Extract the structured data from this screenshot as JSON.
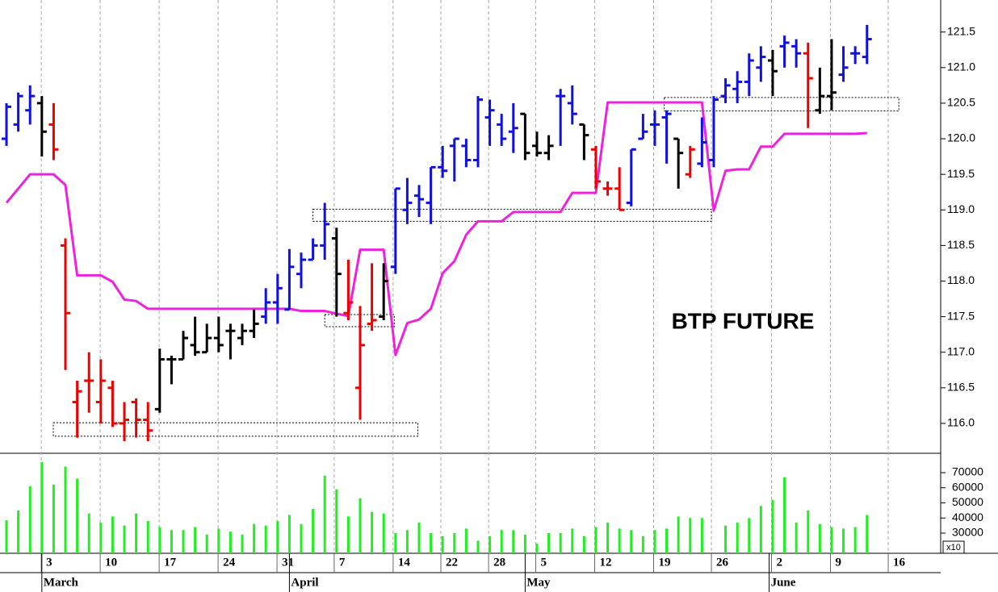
{
  "chart_data": [
    {
      "type": "ohlc",
      "annotation": "BTP FUTURE",
      "xlim": [
        -0.55,
        79.25
      ],
      "ylim": [
        115.58,
        121.95
      ],
      "yticks": [
        {
          "value": 116,
          "label": "116.0"
        },
        116.5,
        {
          "value": 117,
          "label": "117.0"
        },
        117.5,
        {
          "value": 118,
          "label": "118.0"
        },
        118.5,
        {
          "value": 119,
          "label": "119.0"
        },
        119.5,
        {
          "value": 120,
          "label": "120.0"
        },
        120.5,
        {
          "value": 121,
          "label": "121.0"
        },
        121.5
      ],
      "open": [
        120.0,
        120.2,
        120.4,
        120.5,
        120.2,
        118.5,
        116.3,
        116.6,
        116.3,
        116.5,
        116.0,
        116.3,
        116.05,
        116.2,
        116.9,
        116.9,
        117.1,
        117.0,
        117.2,
        117.3,
        117.2,
        117.3,
        117.5,
        117.7,
        117.6,
        118.1,
        118.3,
        118.5,
        118.6,
        117.55,
        116.5,
        117.4,
        117.5,
        118.2,
        119.0,
        119.2,
        119.1,
        119.6,
        119.9,
        119.9,
        119.7,
        120.3,
        120.2,
        120.1,
        120.35,
        119.9,
        119.8,
        120.6,
        120.5,
        120.2,
        119.85,
        119.3,
        119.3,
        119.1,
        120.0,
        120.2,
        120.3,
        120.0,
        119.5,
        119.65,
        119.7,
        120.6,
        120.7,
        120.8,
        121.0,
        121.1,
        121.3,
        121.3,
        121.2,
        120.4,
        120.6,
        120.9,
        121.2,
        121.15
      ],
      "high": [
        120.5,
        120.65,
        120.75,
        120.6,
        120.5,
        118.6,
        116.6,
        117.0,
        116.9,
        116.6,
        116.3,
        116.35,
        116.3,
        117.05,
        116.95,
        117.3,
        117.5,
        117.4,
        117.5,
        117.4,
        117.4,
        117.6,
        117.9,
        118.1,
        118.45,
        118.4,
        118.6,
        119.1,
        118.75,
        118.3,
        117.65,
        118.25,
        118.25,
        119.3,
        119.45,
        119.35,
        119.6,
        119.9,
        120.0,
        120.0,
        120.6,
        120.55,
        120.35,
        120.5,
        120.35,
        120.1,
        120.05,
        120.7,
        120.75,
        120.2,
        119.9,
        119.4,
        119.6,
        119.85,
        120.35,
        120.4,
        120.4,
        120.0,
        119.9,
        120.3,
        120.6,
        120.85,
        120.95,
        121.2,
        121.3,
        121.25,
        121.45,
        121.4,
        121.35,
        121.0,
        121.4,
        121.3,
        121.3,
        121.6
      ],
      "low": [
        119.9,
        120.1,
        120.2,
        119.75,
        119.7,
        116.75,
        115.8,
        116.15,
        116.0,
        115.95,
        115.75,
        115.8,
        115.75,
        116.15,
        116.55,
        116.9,
        116.95,
        117.0,
        117.0,
        116.9,
        117.1,
        117.2,
        117.4,
        117.4,
        117.6,
        117.9,
        118.3,
        118.3,
        117.5,
        117.45,
        116.05,
        117.3,
        117.45,
        118.1,
        118.8,
        118.9,
        118.8,
        119.45,
        119.4,
        119.6,
        119.6,
        119.9,
        119.9,
        119.8,
        119.7,
        119.75,
        119.7,
        119.9,
        120.2,
        119.7,
        119.3,
        119.2,
        119.0,
        119.05,
        120.0,
        119.9,
        119.65,
        119.3,
        119.45,
        119.6,
        119.6,
        120.5,
        120.5,
        120.6,
        120.8,
        120.6,
        121.0,
        121.0,
        120.15,
        120.35,
        120.4,
        120.8,
        121.05,
        121.05
      ],
      "close": [
        120.45,
        120.6,
        120.6,
        120.1,
        119.85,
        117.55,
        116.45,
        116.6,
        116.6,
        116.0,
        116.05,
        116.05,
        115.9,
        116.9,
        116.9,
        117.2,
        117.0,
        117.2,
        117.1,
        117.3,
        117.3,
        117.4,
        117.7,
        117.9,
        118.2,
        118.3,
        118.5,
        118.8,
        118.1,
        117.7,
        117.1,
        117.45,
        118.0,
        119.3,
        119.1,
        119.15,
        119.6,
        119.55,
        120.0,
        119.7,
        120.55,
        120.4,
        120.0,
        120.15,
        119.8,
        119.8,
        119.9,
        120.6,
        120.35,
        120.05,
        119.4,
        119.3,
        119.0,
        119.85,
        120.1,
        120.2,
        120.35,
        119.8,
        119.85,
        119.95,
        120.55,
        120.75,
        120.8,
        121.1,
        121.15,
        120.95,
        121.35,
        121.2,
        120.85,
        120.6,
        120.65,
        121.0,
        121.2,
        121.4
      ],
      "bar_colors": [
        "#1010e0",
        "#1010e0",
        "#1010e0",
        "#000000",
        "#ee0000",
        "#ee0000",
        "#ee0000",
        "#ee0000",
        "#ee0000",
        "#ee0000",
        "#ee0000",
        "#ee0000",
        "#ee0000",
        "#000000",
        "#000000",
        "#000000",
        "#000000",
        "#000000",
        "#000000",
        "#000000",
        "#000000",
        "#000000",
        "#1010e0",
        "#1010e0",
        "#1010e0",
        "#1010e0",
        "#1010e0",
        "#1010e0",
        "#000000",
        "#ee0000",
        "#ee0000",
        "#ee0000",
        "#000000",
        "#1010e0",
        "#1010e0",
        "#1010e0",
        "#1010e0",
        "#1010e0",
        "#1010e0",
        "#1010e0",
        "#1010e0",
        "#1010e0",
        "#1010e0",
        "#1010e0",
        "#000000",
        "#000000",
        "#000000",
        "#1010e0",
        "#1010e0",
        "#000000",
        "#ee0000",
        "#ee0000",
        "#ee0000",
        "#1010e0",
        "#1010e0",
        "#1010e0",
        "#1010e0",
        "#000000",
        "#ee0000",
        "#1010e0",
        "#1010e0",
        "#1010e0",
        "#1010e0",
        "#1010e0",
        "#1010e0",
        "#000000",
        "#1010e0",
        "#1010e0",
        "#ee0000",
        "#000000",
        "#000000",
        "#1010e0",
        "#1010e0",
        "#1010e0"
      ],
      "line": {
        "color": "#ee22dd",
        "values": [
          119.1,
          119.3,
          119.5,
          119.5,
          119.5,
          119.35,
          118.08,
          118.08,
          118.08,
          117.99,
          117.74,
          117.72,
          117.61,
          117.61,
          117.61,
          117.61,
          117.61,
          117.61,
          117.61,
          117.61,
          117.61,
          117.61,
          117.61,
          117.61,
          117.61,
          117.58,
          117.58,
          117.58,
          117.54,
          117.51,
          118.44,
          118.44,
          118.44,
          116.96,
          117.41,
          117.46,
          117.61,
          118.11,
          118.28,
          118.65,
          118.84,
          118.84,
          118.84,
          118.97,
          118.97,
          118.97,
          118.97,
          118.97,
          119.24,
          119.24,
          119.24,
          120.51,
          120.51,
          120.51,
          120.51,
          120.51,
          120.51,
          120.51,
          120.51,
          120.51,
          118.99,
          119.55,
          119.57,
          119.57,
          119.89,
          119.89,
          120.07,
          120.07,
          120.07,
          120.07,
          120.07,
          120.07,
          120.07,
          120.08
        ]
      },
      "zones": [
        {
          "x": [
            3.97,
            34.9
          ],
          "y": [
            115.82,
            116.01
          ]
        },
        {
          "x": [
            26.0,
            59.8
          ],
          "y": [
            118.84,
            119.01
          ]
        },
        {
          "x": [
            27.0,
            32.9
          ],
          "y": [
            117.36,
            117.53
          ]
        },
        {
          "x": [
            55.8,
            75.7
          ],
          "y": [
            120.39,
            120.58
          ]
        }
      ]
    },
    {
      "type": "bar",
      "color": "#22ee22",
      "multiplier_label": "x10",
      "xlim": [
        -0.55,
        79.25
      ],
      "ylim": [
        16667,
        82800
      ],
      "yticks": [
        30000,
        40000,
        50000,
        60000,
        70000
      ],
      "values": [
        38500,
        45000,
        61000,
        77000,
        62000,
        74000,
        66000,
        43000,
        37000,
        41000,
        35000,
        43000,
        38000,
        34000,
        32000,
        32000,
        34000,
        29000,
        33000,
        31000,
        29000,
        36000,
        35000,
        38000,
        42000,
        36000,
        46000,
        68000,
        59000,
        41000,
        53000,
        44000,
        43000,
        30000,
        32000,
        37000,
        30000,
        28000,
        30000,
        33000,
        25000,
        28000,
        32000,
        32000,
        29000,
        23000,
        30000,
        30000,
        33000,
        28000,
        34000,
        37000,
        33000,
        32000,
        28000,
        32000,
        33000,
        41000,
        40000,
        40000,
        null,
        35000,
        37000,
        40000,
        48000,
        52000,
        67000,
        37000,
        45000,
        36000,
        34000,
        33000,
        34000,
        42000
      ],
      "xticks": [
        {
          "value": 2.95,
          "label": "3"
        },
        {
          "value": 7.95,
          "label": "10"
        },
        {
          "value": 12.95,
          "label": "17"
        },
        {
          "value": 17.95,
          "label": "24"
        },
        {
          "value": 22.95,
          "label": "31"
        },
        {
          "value": 27.8,
          "label": "7"
        },
        {
          "value": 32.8,
          "label": "14"
        },
        {
          "value": 36.85,
          "label": "22"
        },
        {
          "value": 40.9,
          "label": "28"
        },
        {
          "value": 44.9,
          "label": "5"
        },
        {
          "value": 49.9,
          "label": "12"
        },
        {
          "value": 54.9,
          "label": "19"
        },
        {
          "value": 59.8,
          "label": "26"
        },
        {
          "value": 64.9,
          "label": "2"
        },
        {
          "value": 69.9,
          "label": "9"
        },
        {
          "value": 74.8,
          "label": "16"
        }
      ],
      "month_ticks": [
        {
          "value": 3.0,
          "label": "March"
        },
        {
          "value": 24.0,
          "label": "April"
        },
        {
          "value": 44.0,
          "label": "May"
        },
        {
          "value": 64.7,
          "label": "June"
        }
      ]
    }
  ]
}
